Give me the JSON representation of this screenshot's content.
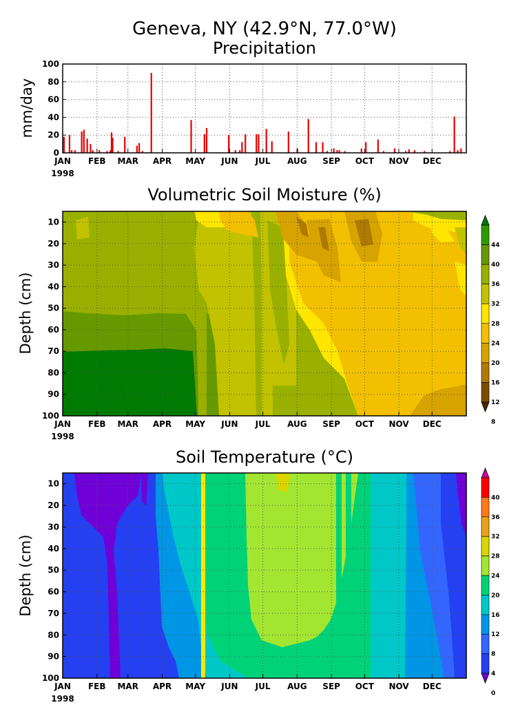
{
  "header": {
    "title": "Geneva, NY  (42.9°N, 77.0°W)"
  },
  "chart_data": [
    {
      "type": "bar",
      "title": "Precipitation",
      "ylabel": "mm/day",
      "xlabel": "",
      "ylim": [
        0,
        100
      ],
      "yticks": [
        0,
        20,
        40,
        60,
        80,
        100
      ],
      "xlim_days": [
        0,
        365
      ],
      "month_labels": [
        "JAN",
        "FEB",
        "MAR",
        "APR",
        "MAY",
        "JUN",
        "JUL",
        "AUG",
        "SEP",
        "OCT",
        "NOV",
        "DEC"
      ],
      "year_label": "1998",
      "grid": true,
      "bar_color": "#e60000",
      "series": [
        {
          "day": [
            1,
            6,
            8,
            11,
            17,
            19,
            22,
            25,
            27,
            33,
            40,
            43,
            44,
            45,
            50,
            56,
            67,
            69,
            72,
            80,
            116,
            128,
            130,
            150,
            156,
            160,
            162,
            165,
            175,
            177,
            184,
            189,
            204,
            212,
            222,
            229,
            235,
            239,
            245,
            248,
            250,
            255,
            270,
            274,
            285,
            290,
            300,
            310,
            313,
            318,
            327,
            350,
            354,
            357,
            360
          ],
          "value": [
            18,
            20,
            3,
            3,
            24,
            26,
            16,
            10,
            3,
            3,
            2,
            3,
            23,
            17,
            2,
            18,
            8,
            11,
            2,
            90,
            37,
            21,
            28,
            20,
            3,
            3,
            12,
            21,
            21,
            21,
            27,
            13,
            24,
            5,
            38,
            12,
            12,
            2,
            5,
            3,
            3,
            2,
            5,
            12,
            15,
            2,
            5,
            2,
            4,
            3,
            2,
            2,
            41,
            3,
            5
          ]
        }
      ]
    },
    {
      "type": "heatmap",
      "title": "Volumetric Soil Moisture (%)",
      "ylabel": "Depth (cm)",
      "xlabel": "",
      "ylim": [
        100,
        5
      ],
      "yticks": [
        10,
        20,
        30,
        40,
        50,
        60,
        70,
        80,
        90,
        100
      ],
      "month_labels": [
        "JAN",
        "FEB",
        "MAR",
        "APR",
        "MAY",
        "JUN",
        "JUL",
        "AUG",
        "SEP",
        "OCT",
        "NOV",
        "DEC"
      ],
      "year_label": "1998",
      "grid": true,
      "colorbar": {
        "ticks": [
          "44",
          "40",
          "36",
          "32",
          "28",
          "24",
          "20",
          "16",
          "12",
          "8"
        ],
        "colors": [
          "#007a00",
          "#2e9a00",
          "#669900",
          "#99b000",
          "#c2c200",
          "#ffe600",
          "#f2c000",
          "#d6a300",
          "#b07a00",
          "#7a4d00",
          "#4d2600"
        ],
        "position": "right"
      }
    },
    {
      "type": "heatmap",
      "title": "Soil Temperature (°C)",
      "ylabel": "Depth (cm)",
      "xlabel": "",
      "ylim": [
        100,
        5
      ],
      "yticks": [
        10,
        20,
        30,
        40,
        50,
        60,
        70,
        80,
        90,
        100
      ],
      "month_labels": [
        "JAN",
        "FEB",
        "MAR",
        "APR",
        "MAY",
        "JUN",
        "JUL",
        "AUG",
        "SEP",
        "OCT",
        "NOV",
        "DEC"
      ],
      "year_label": "1998",
      "grid": true,
      "colorbar": {
        "ticks": [
          "40",
          "36",
          "32",
          "28",
          "24",
          "20",
          "16",
          "12",
          "8",
          "4",
          "0"
        ],
        "colors": [
          "#cc0099",
          "#ff0000",
          "#ff7a1a",
          "#e6a31a",
          "#d9d600",
          "#a3e632",
          "#00d278",
          "#00c8c8",
          "#0096e6",
          "#3366ff",
          "#2440f0",
          "#7000d8"
        ],
        "position": "right"
      }
    }
  ]
}
